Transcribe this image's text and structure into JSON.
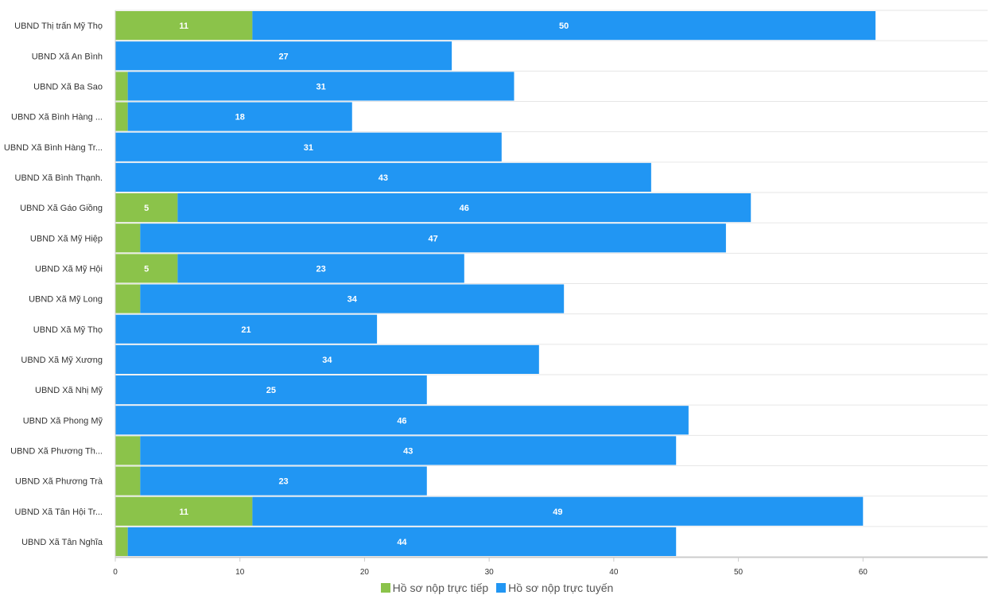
{
  "chart_data": {
    "type": "bar",
    "orientation": "horizontal",
    "stacked": true,
    "categories": [
      "UBND Thị trấn Mỹ Thọ",
      "UBND Xã An Bình",
      "UBND Xã Ba Sao",
      "UBND Xã Bình Hàng ...",
      "UBND Xã Bình Hàng Tr...",
      "UBND Xã Bình Thạnh.",
      "UBND Xã Gáo Giồng",
      "UBND Xã Mỹ Hiệp",
      "UBND Xã Mỹ Hội",
      "UBND Xã Mỹ Long",
      "UBND Xã Mỹ Thọ",
      "UBND Xã Mỹ Xương",
      "UBND Xã Nhị Mỹ",
      "UBND Xã Phong Mỹ",
      "UBND Xã Phương Th...",
      "UBND Xã Phương Trà",
      "UBND Xã Tân Hội Tr...",
      "UBND Xã Tân Nghĩa"
    ],
    "series": [
      {
        "name": "Hồ sơ nộp trực tiếp",
        "color": "#8bc34a",
        "values": [
          11,
          0,
          1,
          1,
          0,
          0,
          5,
          2,
          5,
          2,
          0,
          0,
          0,
          0,
          2,
          2,
          11,
          1
        ],
        "labels": [
          "11",
          "",
          "",
          "",
          "",
          "",
          "5",
          "",
          "5",
          "",
          "",
          "",
          "",
          "",
          "",
          "",
          "11",
          ""
        ]
      },
      {
        "name": "Hồ sơ nộp trực tuyến",
        "color": "#2196f3",
        "values": [
          50,
          27,
          31,
          18,
          31,
          43,
          46,
          47,
          23,
          34,
          21,
          34,
          25,
          46,
          43,
          23,
          49,
          44
        ],
        "labels": [
          "50",
          "27",
          "31",
          "18",
          "31",
          "43",
          "46",
          "47",
          "23",
          "34",
          "21",
          "34",
          "25",
          "46",
          "43",
          "23",
          "49",
          "44"
        ]
      }
    ],
    "xlim": [
      0,
      70
    ],
    "xticks": [
      0,
      10,
      20,
      30,
      40,
      50,
      60
    ],
    "xtick_labels": [
      "0",
      "10",
      "20",
      "30",
      "40",
      "50",
      "60"
    ],
    "grid": true,
    "legend_position": "bottom"
  }
}
